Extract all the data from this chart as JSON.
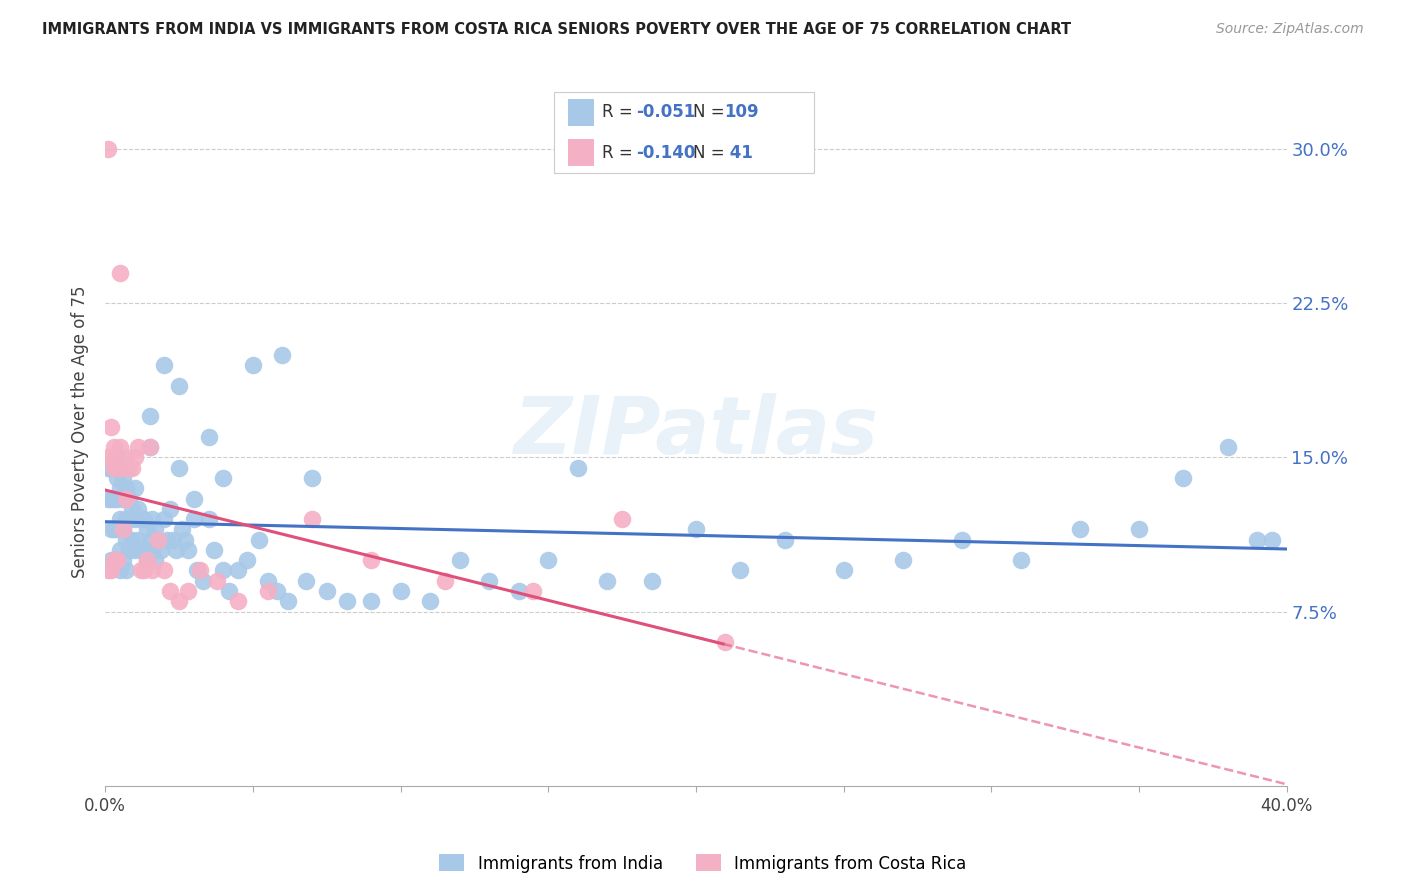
{
  "title": "IMMIGRANTS FROM INDIA VS IMMIGRANTS FROM COSTA RICA SENIORS POVERTY OVER THE AGE OF 75 CORRELATION CHART",
  "source": "Source: ZipAtlas.com",
  "ylabel": "Seniors Poverty Over the Age of 75",
  "ytick_labels": [
    "7.5%",
    "15.0%",
    "22.5%",
    "30.0%"
  ],
  "ytick_values": [
    0.075,
    0.15,
    0.225,
    0.3
  ],
  "xlim": [
    0.0,
    0.4
  ],
  "ylim": [
    -0.01,
    0.335
  ],
  "india_color": "#a8c8e8",
  "india_line_color": "#4472c4",
  "cr_color": "#f4b0c4",
  "cr_line_color": "#e0507a",
  "india_R": -0.051,
  "india_N": 109,
  "cr_R": -0.14,
  "cr_N": 41,
  "watermark": "ZIPatlas",
  "india_x": [
    0.001,
    0.001,
    0.002,
    0.002,
    0.002,
    0.002,
    0.003,
    0.003,
    0.003,
    0.003,
    0.004,
    0.004,
    0.004,
    0.004,
    0.004,
    0.005,
    0.005,
    0.005,
    0.005,
    0.005,
    0.006,
    0.006,
    0.006,
    0.006,
    0.007,
    0.007,
    0.007,
    0.007,
    0.008,
    0.008,
    0.008,
    0.009,
    0.009,
    0.01,
    0.01,
    0.01,
    0.011,
    0.011,
    0.012,
    0.012,
    0.013,
    0.013,
    0.014,
    0.014,
    0.015,
    0.015,
    0.016,
    0.016,
    0.017,
    0.017,
    0.018,
    0.019,
    0.02,
    0.021,
    0.022,
    0.023,
    0.024,
    0.025,
    0.026,
    0.027,
    0.028,
    0.03,
    0.031,
    0.033,
    0.035,
    0.037,
    0.04,
    0.042,
    0.045,
    0.048,
    0.052,
    0.055,
    0.058,
    0.062,
    0.068,
    0.075,
    0.082,
    0.09,
    0.1,
    0.11,
    0.12,
    0.13,
    0.14,
    0.15,
    0.16,
    0.17,
    0.185,
    0.2,
    0.215,
    0.23,
    0.25,
    0.27,
    0.29,
    0.31,
    0.33,
    0.35,
    0.365,
    0.38,
    0.39,
    0.395,
    0.015,
    0.02,
    0.025,
    0.03,
    0.035,
    0.04,
    0.05,
    0.06,
    0.07
  ],
  "india_y": [
    0.145,
    0.13,
    0.145,
    0.13,
    0.115,
    0.1,
    0.145,
    0.13,
    0.115,
    0.1,
    0.15,
    0.14,
    0.13,
    0.115,
    0.1,
    0.145,
    0.135,
    0.12,
    0.105,
    0.095,
    0.14,
    0.13,
    0.115,
    0.1,
    0.135,
    0.12,
    0.11,
    0.095,
    0.13,
    0.12,
    0.105,
    0.125,
    0.11,
    0.135,
    0.12,
    0.105,
    0.125,
    0.11,
    0.12,
    0.105,
    0.12,
    0.105,
    0.115,
    0.1,
    0.155,
    0.11,
    0.12,
    0.105,
    0.115,
    0.1,
    0.11,
    0.105,
    0.12,
    0.11,
    0.125,
    0.11,
    0.105,
    0.145,
    0.115,
    0.11,
    0.105,
    0.12,
    0.095,
    0.09,
    0.12,
    0.105,
    0.095,
    0.085,
    0.095,
    0.1,
    0.11,
    0.09,
    0.085,
    0.08,
    0.09,
    0.085,
    0.08,
    0.08,
    0.085,
    0.08,
    0.1,
    0.09,
    0.085,
    0.1,
    0.145,
    0.09,
    0.09,
    0.115,
    0.095,
    0.11,
    0.095,
    0.1,
    0.11,
    0.1,
    0.115,
    0.115,
    0.14,
    0.155,
    0.11,
    0.11,
    0.17,
    0.195,
    0.185,
    0.13,
    0.16,
    0.14,
    0.195,
    0.2,
    0.14
  ],
  "cr_x": [
    0.001,
    0.001,
    0.001,
    0.002,
    0.002,
    0.002,
    0.003,
    0.003,
    0.003,
    0.004,
    0.004,
    0.005,
    0.005,
    0.006,
    0.006,
    0.007,
    0.007,
    0.008,
    0.009,
    0.01,
    0.011,
    0.012,
    0.013,
    0.014,
    0.015,
    0.016,
    0.018,
    0.02,
    0.022,
    0.025,
    0.028,
    0.032,
    0.038,
    0.045,
    0.055,
    0.07,
    0.09,
    0.115,
    0.145,
    0.175,
    0.21
  ],
  "cr_y": [
    0.3,
    0.15,
    0.095,
    0.165,
    0.15,
    0.095,
    0.155,
    0.145,
    0.1,
    0.145,
    0.1,
    0.24,
    0.155,
    0.145,
    0.115,
    0.15,
    0.13,
    0.145,
    0.145,
    0.15,
    0.155,
    0.095,
    0.095,
    0.1,
    0.155,
    0.095,
    0.11,
    0.095,
    0.085,
    0.08,
    0.085,
    0.095,
    0.09,
    0.08,
    0.085,
    0.12,
    0.1,
    0.09,
    0.085,
    0.12,
    0.06
  ]
}
